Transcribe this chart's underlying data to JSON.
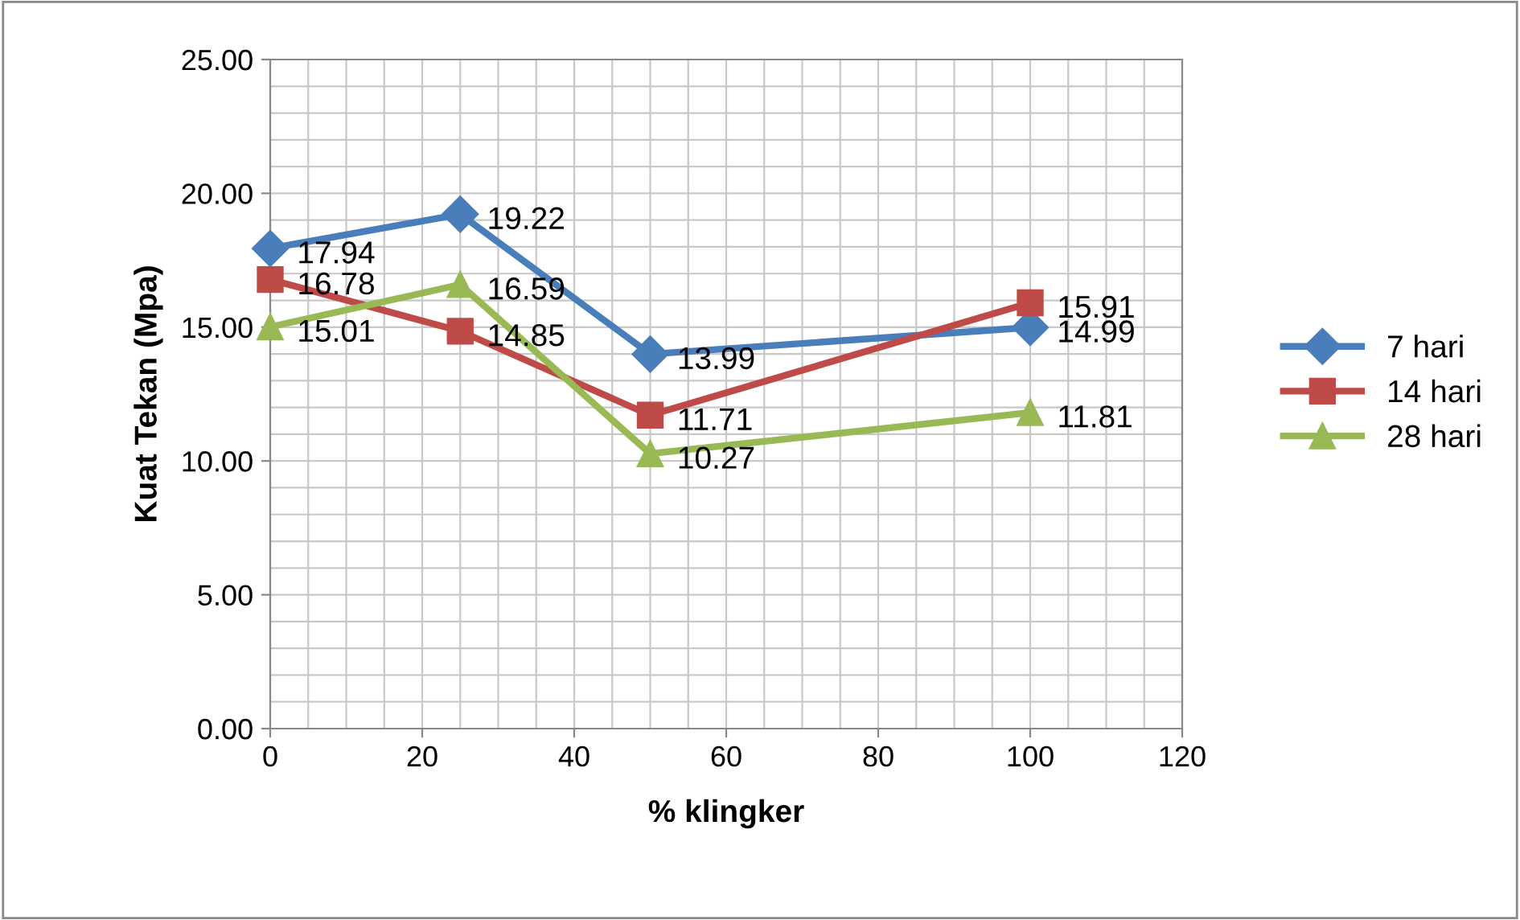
{
  "chart_data": {
    "type": "line",
    "xlabel": "% klingker",
    "ylabel": "Kuat Tekan (Mpa)",
    "x": [
      0,
      25,
      50,
      100
    ],
    "series": [
      {
        "name": "7 hari",
        "color": "#4a7ebb",
        "marker": "diamond",
        "values": [
          17.94,
          19.22,
          13.99,
          14.99
        ]
      },
      {
        "name": "14 hari",
        "color": "#be4b48",
        "marker": "square",
        "values": [
          16.78,
          14.85,
          11.71,
          15.91
        ]
      },
      {
        "name": "28 hari",
        "color": "#98b954",
        "marker": "triangle",
        "values": [
          15.01,
          16.59,
          10.27,
          11.81
        ]
      }
    ],
    "xlim": [
      0,
      120
    ],
    "xticks": [
      0,
      20,
      40,
      60,
      80,
      100,
      120
    ],
    "ylim": [
      0,
      25
    ],
    "yticks": [
      {
        "value": 0,
        "label": "0.00"
      },
      {
        "value": 5,
        "label": "5.00"
      },
      {
        "value": 10,
        "label": "10.00"
      },
      {
        "value": 15,
        "label": "15.00"
      },
      {
        "value": 20,
        "label": "20.00"
      },
      {
        "value": 25,
        "label": "25.00"
      }
    ],
    "grid": true,
    "legend": "right",
    "data_labels": true,
    "line_style": "solid"
  }
}
